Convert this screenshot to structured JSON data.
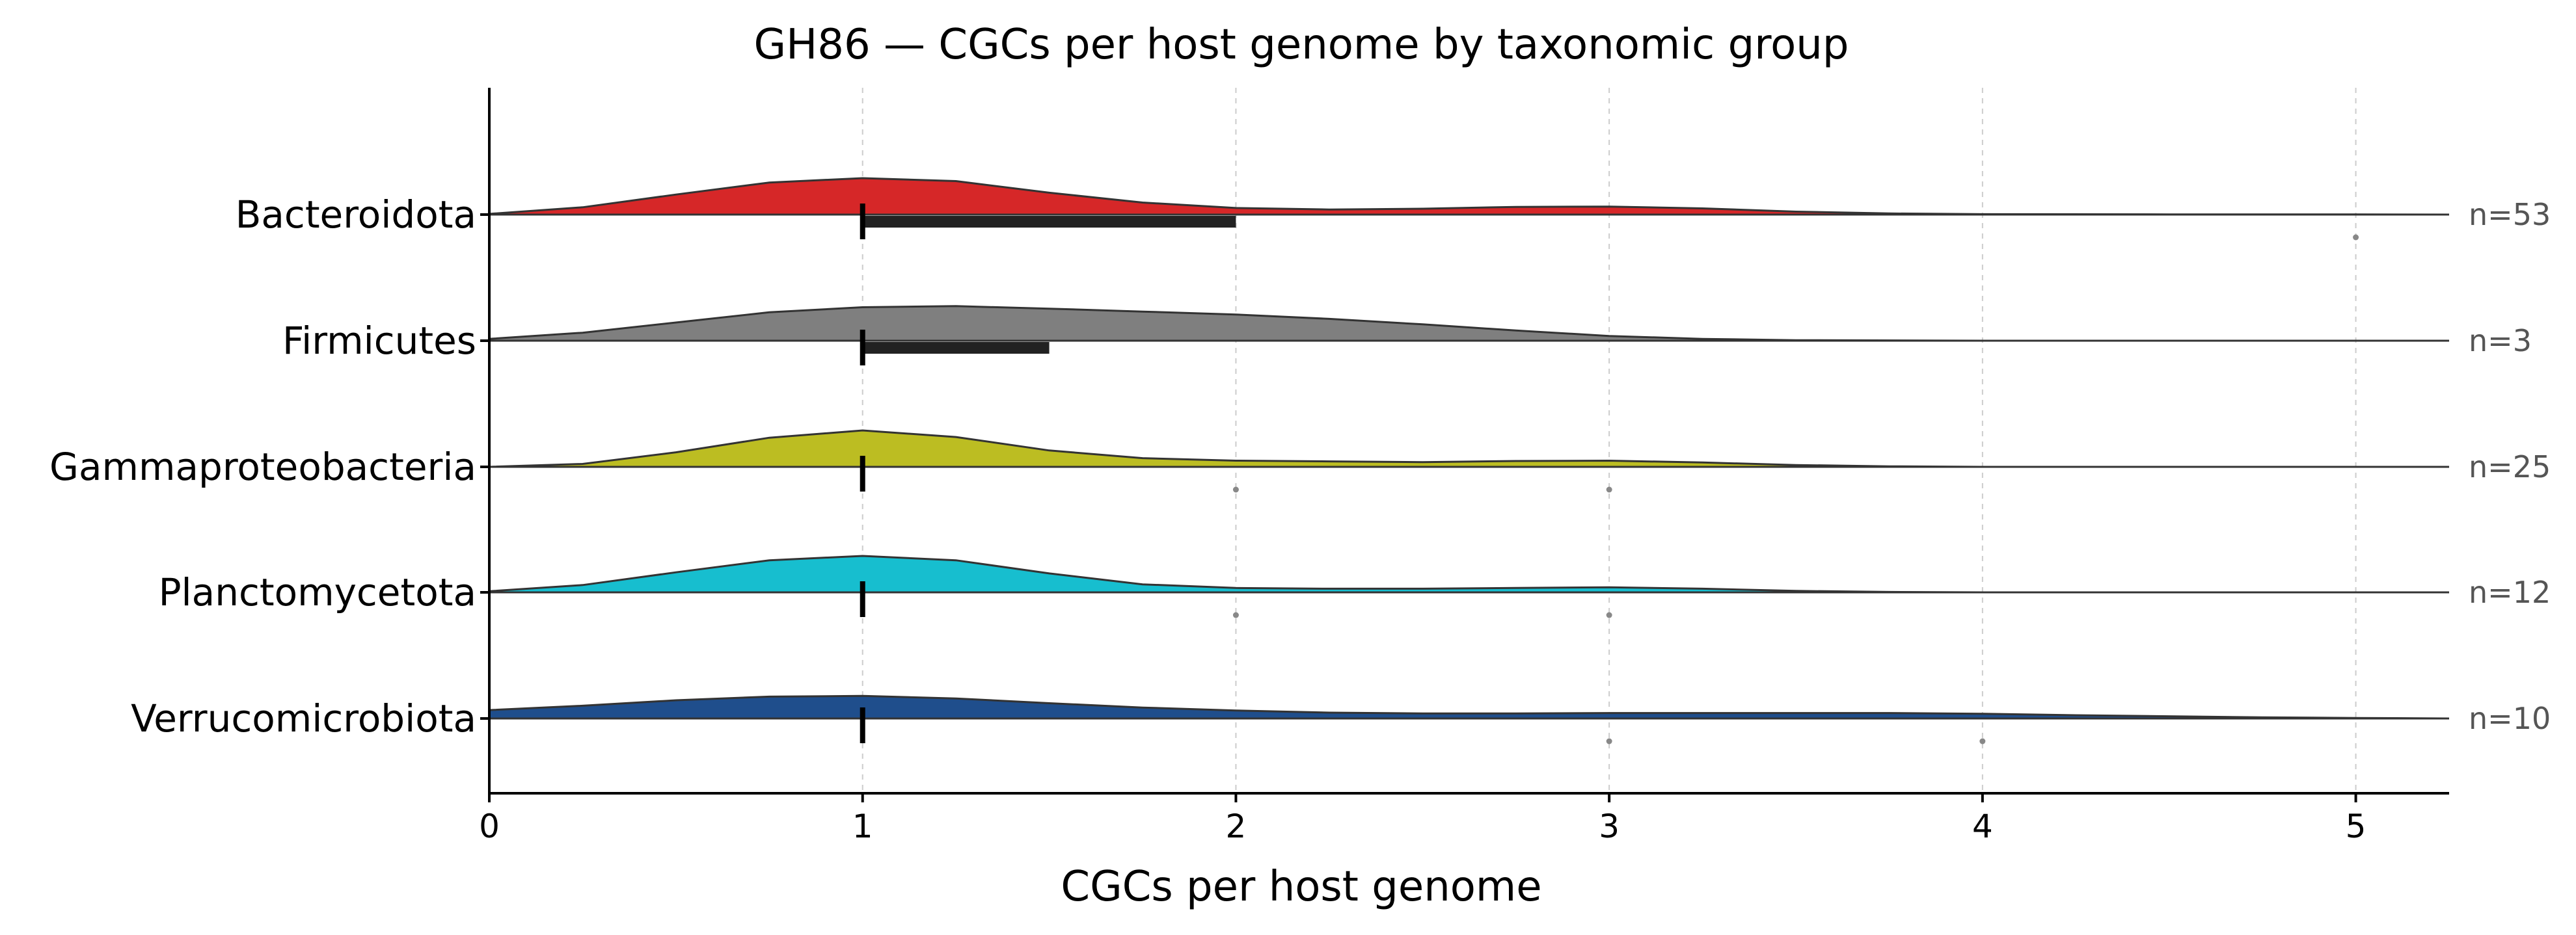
{
  "chart_data": {
    "type": "ridgeline",
    "title": "GH86 — CGCs per host genome by taxonomic group",
    "xlabel": "CGCs per host genome",
    "xlim": [
      0,
      5.25
    ],
    "xticks": [
      0,
      1,
      2,
      3,
      4,
      5
    ],
    "grid": "vertical dashed",
    "groups": [
      {
        "name": "Bacteroidota",
        "n_label": "n=53",
        "color": "#d62728",
        "median": 1,
        "q1": 1,
        "q3": 2,
        "outliers": [
          5
        ],
        "density": [
          [
            0,
            0.02
          ],
          [
            0.25,
            0.2
          ],
          [
            0.5,
            0.55
          ],
          [
            0.75,
            0.88
          ],
          [
            1,
            1.0
          ],
          [
            1.25,
            0.92
          ],
          [
            1.5,
            0.6
          ],
          [
            1.75,
            0.33
          ],
          [
            2,
            0.18
          ],
          [
            2.25,
            0.14
          ],
          [
            2.5,
            0.16
          ],
          [
            2.75,
            0.21
          ],
          [
            3,
            0.22
          ],
          [
            3.25,
            0.17
          ],
          [
            3.5,
            0.08
          ],
          [
            3.75,
            0.03
          ],
          [
            4,
            0.01
          ],
          [
            4.5,
            0.005
          ],
          [
            5,
            0.003
          ],
          [
            5.25,
            0.0
          ]
        ]
      },
      {
        "name": "Firmicutes",
        "n_label": "n=3",
        "color": "#7f7f7f",
        "median": 1,
        "q1": 1,
        "q3": 1.5,
        "outliers": [],
        "density": [
          [
            0,
            0.05
          ],
          [
            0.25,
            0.22
          ],
          [
            0.5,
            0.5
          ],
          [
            0.75,
            0.78
          ],
          [
            1,
            0.92
          ],
          [
            1.25,
            0.95
          ],
          [
            1.5,
            0.88
          ],
          [
            1.75,
            0.8
          ],
          [
            2,
            0.72
          ],
          [
            2.25,
            0.6
          ],
          [
            2.5,
            0.45
          ],
          [
            2.75,
            0.28
          ],
          [
            3,
            0.13
          ],
          [
            3.25,
            0.05
          ],
          [
            3.5,
            0.015
          ],
          [
            4,
            0.0
          ],
          [
            5.25,
            0.0
          ]
        ]
      },
      {
        "name": "Gammaproteobacteria",
        "n_label": "n=25",
        "color": "#bcbd22",
        "median": 1,
        "q1": 1,
        "q3": 1,
        "outliers": [
          2,
          3
        ],
        "density": [
          [
            0,
            0.0
          ],
          [
            0.25,
            0.08
          ],
          [
            0.5,
            0.4
          ],
          [
            0.75,
            0.8
          ],
          [
            1,
            1.0
          ],
          [
            1.25,
            0.82
          ],
          [
            1.5,
            0.45
          ],
          [
            1.75,
            0.24
          ],
          [
            2,
            0.17
          ],
          [
            2.25,
            0.15
          ],
          [
            2.5,
            0.13
          ],
          [
            2.75,
            0.16
          ],
          [
            3,
            0.17
          ],
          [
            3.25,
            0.12
          ],
          [
            3.5,
            0.05
          ],
          [
            3.75,
            0.015
          ],
          [
            4,
            0.0
          ],
          [
            5.25,
            0.0
          ]
        ]
      },
      {
        "name": "Planctomycetota",
        "n_label": "n=12",
        "color": "#17becf",
        "median": 1,
        "q1": 1,
        "q3": 1,
        "outliers": [
          2,
          3
        ],
        "density": [
          [
            0,
            0.03
          ],
          [
            0.25,
            0.2
          ],
          [
            0.5,
            0.55
          ],
          [
            0.75,
            0.88
          ],
          [
            1,
            1.0
          ],
          [
            1.25,
            0.88
          ],
          [
            1.5,
            0.52
          ],
          [
            1.75,
            0.22
          ],
          [
            2,
            0.12
          ],
          [
            2.25,
            0.1
          ],
          [
            2.5,
            0.1
          ],
          [
            2.75,
            0.12
          ],
          [
            3,
            0.14
          ],
          [
            3.25,
            0.1
          ],
          [
            3.5,
            0.04
          ],
          [
            3.75,
            0.01
          ],
          [
            4,
            0.0
          ],
          [
            5.25,
            0.0
          ]
        ]
      },
      {
        "name": "Verrucomicrobiota",
        "n_label": "n=10",
        "color": "#1f4e8c",
        "median": 1,
        "q1": 1,
        "q3": 1,
        "outliers": [
          3,
          4
        ],
        "density": [
          [
            0,
            0.23
          ],
          [
            0.25,
            0.35
          ],
          [
            0.5,
            0.5
          ],
          [
            0.75,
            0.6
          ],
          [
            1,
            0.62
          ],
          [
            1.25,
            0.55
          ],
          [
            1.5,
            0.42
          ],
          [
            1.75,
            0.3
          ],
          [
            2,
            0.22
          ],
          [
            2.25,
            0.16
          ],
          [
            2.5,
            0.14
          ],
          [
            2.75,
            0.14
          ],
          [
            3,
            0.15
          ],
          [
            3.25,
            0.15
          ],
          [
            3.5,
            0.15
          ],
          [
            3.75,
            0.15
          ],
          [
            4,
            0.13
          ],
          [
            4.25,
            0.09
          ],
          [
            4.5,
            0.06
          ],
          [
            4.75,
            0.03
          ],
          [
            5,
            0.015
          ],
          [
            5.25,
            0.0
          ]
        ]
      }
    ]
  }
}
